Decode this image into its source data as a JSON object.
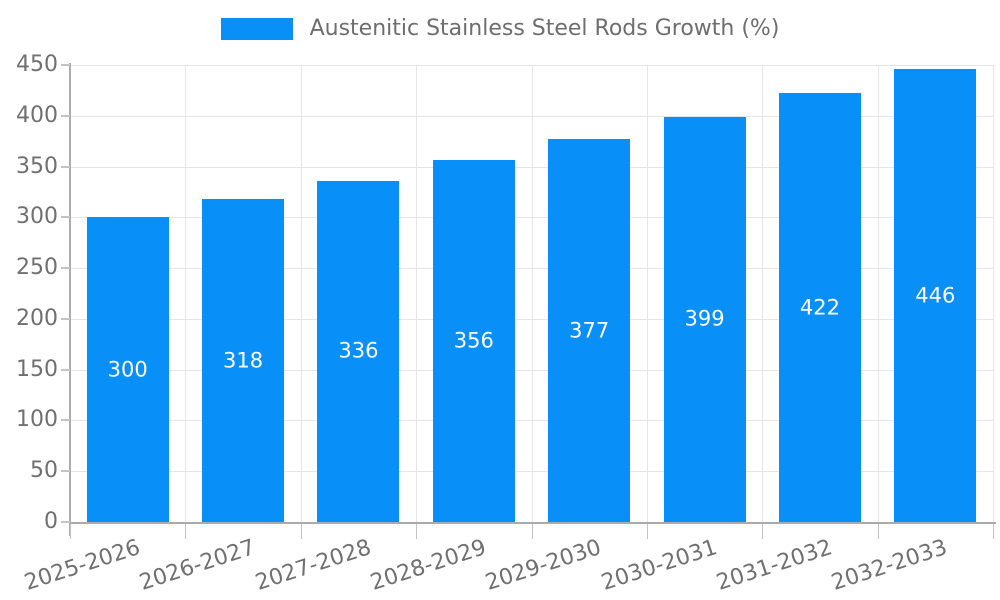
{
  "legend": {
    "label": "Austenitic Stainless Steel Rods Growth (%)"
  },
  "chart_data": {
    "type": "bar",
    "title": "Austenitic Stainless Steel Rods Growth (%)",
    "categories": [
      "2025-2026",
      "2026-2027",
      "2027-2028",
      "2028-2029",
      "2029-2030",
      "2030-2031",
      "2031-2032",
      "2032-2033"
    ],
    "values": [
      300,
      318,
      336,
      356,
      377,
      399,
      422,
      446
    ],
    "xlabel": "",
    "ylabel": "",
    "ylim": [
      0,
      450
    ],
    "yticks": [
      0,
      50,
      100,
      150,
      200,
      250,
      300,
      350,
      400,
      450
    ],
    "grid": true,
    "legend_position": "top-center",
    "value_labels": "centered-inside-bars-white",
    "colors": {
      "bar": "#0890F8",
      "value_label": "#ffffff",
      "grid": "#e6e6e6",
      "axis": "#ababab",
      "tick": "#c4c4c4",
      "tick_text": "#707070",
      "legend_text": "#6e6e6e",
      "background": "#ffffff"
    }
  }
}
